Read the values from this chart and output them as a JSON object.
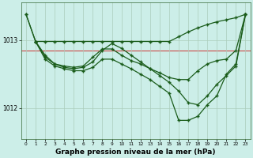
{
  "bg_color": "#cceee8",
  "grid_color": "#aaccbb",
  "line_color": "#1a5c1a",
  "xlabel": "Graphe pression niveau de la mer (hPa)",
  "xlabel_fontsize": 6.5,
  "xlim_min": -0.5,
  "xlim_max": 23.5,
  "ylim_min": 1011.55,
  "ylim_max": 1013.55,
  "yticks": [
    1012,
    1013
  ],
  "xticks": [
    0,
    1,
    2,
    3,
    4,
    5,
    6,
    7,
    8,
    9,
    10,
    11,
    12,
    13,
    14,
    15,
    16,
    17,
    18,
    19,
    20,
    21,
    22,
    23
  ],
  "redline_y": 1012.85,
  "line1_x": [
    0,
    1,
    2,
    3,
    4,
    5,
    6,
    7,
    8,
    9,
    10,
    11,
    12,
    13,
    14,
    15,
    16,
    17,
    18,
    19,
    20,
    21,
    22,
    23
  ],
  "line1_y": [
    1013.38,
    1012.98,
    1012.98,
    1012.98,
    1012.98,
    1012.98,
    1012.98,
    1012.98,
    1012.98,
    1012.98,
    1012.98,
    1012.98,
    1012.98,
    1012.98,
    1012.98,
    1012.98,
    1013.05,
    1013.12,
    1013.18,
    1013.23,
    1013.27,
    1013.3,
    1013.33,
    1013.38
  ],
  "line2_x": [
    0,
    1,
    2,
    3,
    4,
    5,
    6,
    7,
    8,
    9,
    10,
    11,
    12,
    13,
    14,
    15,
    16,
    17,
    18,
    19,
    20,
    21,
    22,
    23
  ],
  "line2_y": [
    1013.38,
    1012.98,
    1012.75,
    1012.65,
    1012.62,
    1012.6,
    1012.62,
    1012.75,
    1012.87,
    1012.87,
    1012.78,
    1012.7,
    1012.65,
    1012.58,
    1012.52,
    1012.45,
    1012.42,
    1012.42,
    1012.55,
    1012.65,
    1012.7,
    1012.72,
    1012.85,
    1013.38
  ],
  "line3_x": [
    1,
    2,
    3,
    4,
    5,
    6,
    7,
    8,
    9,
    10,
    11,
    12,
    13,
    14,
    15,
    16,
    17,
    18,
    19,
    20,
    21,
    22,
    23
  ],
  "line3_y": [
    1012.98,
    1012.78,
    1012.65,
    1012.6,
    1012.58,
    1012.6,
    1012.68,
    1012.85,
    1012.95,
    1012.88,
    1012.78,
    1012.68,
    1012.58,
    1012.48,
    1012.38,
    1012.25,
    1012.08,
    1012.05,
    1012.18,
    1012.35,
    1012.48,
    1012.62,
    1013.38
  ],
  "line4_x": [
    1,
    2,
    3,
    4,
    5,
    6,
    7,
    8,
    9,
    10,
    11,
    12,
    13,
    14,
    15,
    16,
    17,
    18,
    19,
    20,
    21,
    22,
    23
  ],
  "line4_y": [
    1012.98,
    1012.72,
    1012.62,
    1012.58,
    1012.55,
    1012.55,
    1012.6,
    1012.72,
    1012.72,
    1012.65,
    1012.58,
    1012.5,
    1012.42,
    1012.32,
    1012.22,
    1011.82,
    1011.82,
    1011.88,
    1012.05,
    1012.18,
    1012.5,
    1012.65,
    1013.38
  ]
}
